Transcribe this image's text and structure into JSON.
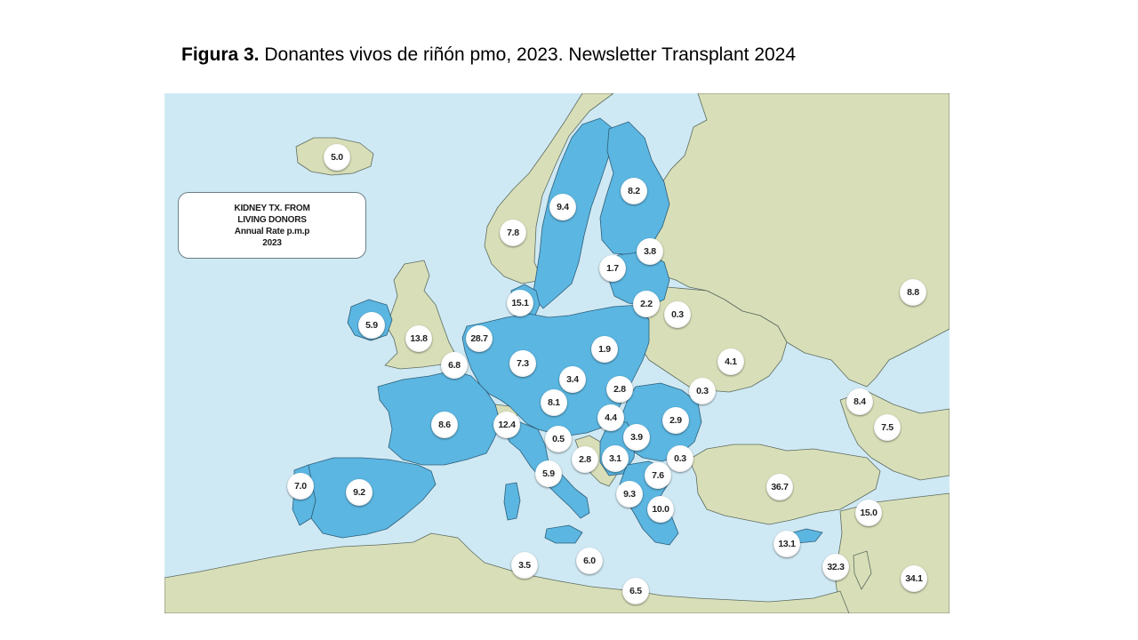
{
  "caption": {
    "label": "Figura 3.",
    "text": " Donantes vivos de riñón pmo, 2023. Newsletter Transplant 2024"
  },
  "legend": {
    "line1": "KIDNEY TX. FROM",
    "line2": "LIVING DONORS",
    "line3": "Annual Rate p.m.p",
    "line4": "2023"
  },
  "colors": {
    "sea": "#cfe9f4",
    "highlighted_country": "#5bb6e1",
    "other_land": "#d8dfb8",
    "border": "#5d6b60"
  },
  "map_values": [
    "5.0",
    "9.4",
    "8.2",
    "7.8",
    "3.8",
    "1.7",
    "15.1",
    "2.2",
    "0.3",
    "8.8",
    "5.9",
    "13.8",
    "28.7",
    "1.9",
    "7.3",
    "6.8",
    "4.1",
    "3.4",
    "2.8",
    "0.3",
    "8.4",
    "8.1",
    "4.4",
    "2.9",
    "7.5",
    "8.6",
    "12.4",
    "3.9",
    "0.5",
    "2.8",
    "3.1",
    "0.3",
    "7.6",
    "5.9",
    "7.0",
    "9.2",
    "9.3",
    "36.7",
    "10.0",
    "15.0",
    "13.1",
    "3.5",
    "6.0",
    "32.3",
    "34.1",
    "6.5"
  ]
}
